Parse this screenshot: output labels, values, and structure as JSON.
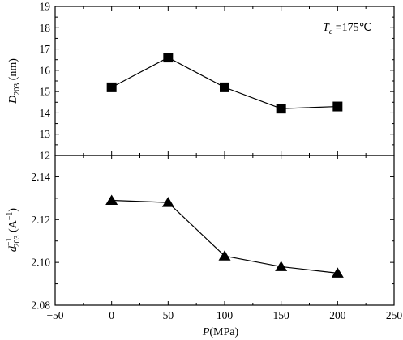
{
  "chart_data": [
    {
      "type": "line",
      "panel": "top",
      "x": [
        0,
        50,
        100,
        150,
        200
      ],
      "series": [
        {
          "values": [
            15.2,
            16.6,
            15.2,
            14.2,
            14.3
          ],
          "marker": "square",
          "color": "#000000"
        }
      ],
      "ylabel": {
        "main": "D",
        "sub": "203",
        "unit": " (nm)"
      },
      "xlim": [
        -50,
        250
      ],
      "ylim": [
        12,
        19
      ],
      "yticks": [
        12,
        13,
        14,
        15,
        16,
        17,
        18,
        19
      ],
      "annotation": {
        "main": "T",
        "sub": "c",
        "rest": " =175℃"
      }
    },
    {
      "type": "line",
      "panel": "bottom",
      "x": [
        0,
        50,
        100,
        150,
        200
      ],
      "series": [
        {
          "values": [
            2.129,
            2.128,
            2.103,
            2.098,
            2.095
          ],
          "marker": "triangle",
          "color": "#000000"
        }
      ],
      "ylabel": {
        "main": "d",
        "sup": "−1",
        "sub": "203",
        "unit": " (A",
        "unit_sup": "−1",
        "unit_close": ")"
      },
      "xlabel": {
        "main": "P",
        "unit": "(MPa)"
      },
      "xlim": [
        -50,
        250
      ],
      "ylim": [
        2.08,
        2.15
      ],
      "xticks": [
        -50,
        0,
        50,
        100,
        150,
        200,
        250
      ],
      "xtick_labels": [
        "−50",
        "0",
        "50",
        "100",
        "150",
        "200",
        "250"
      ],
      "yticks": [
        2.08,
        2.1,
        2.12,
        2.14
      ],
      "ytick_labels": [
        "2.08",
        "2.10",
        "2.12",
        "2.14"
      ]
    }
  ]
}
